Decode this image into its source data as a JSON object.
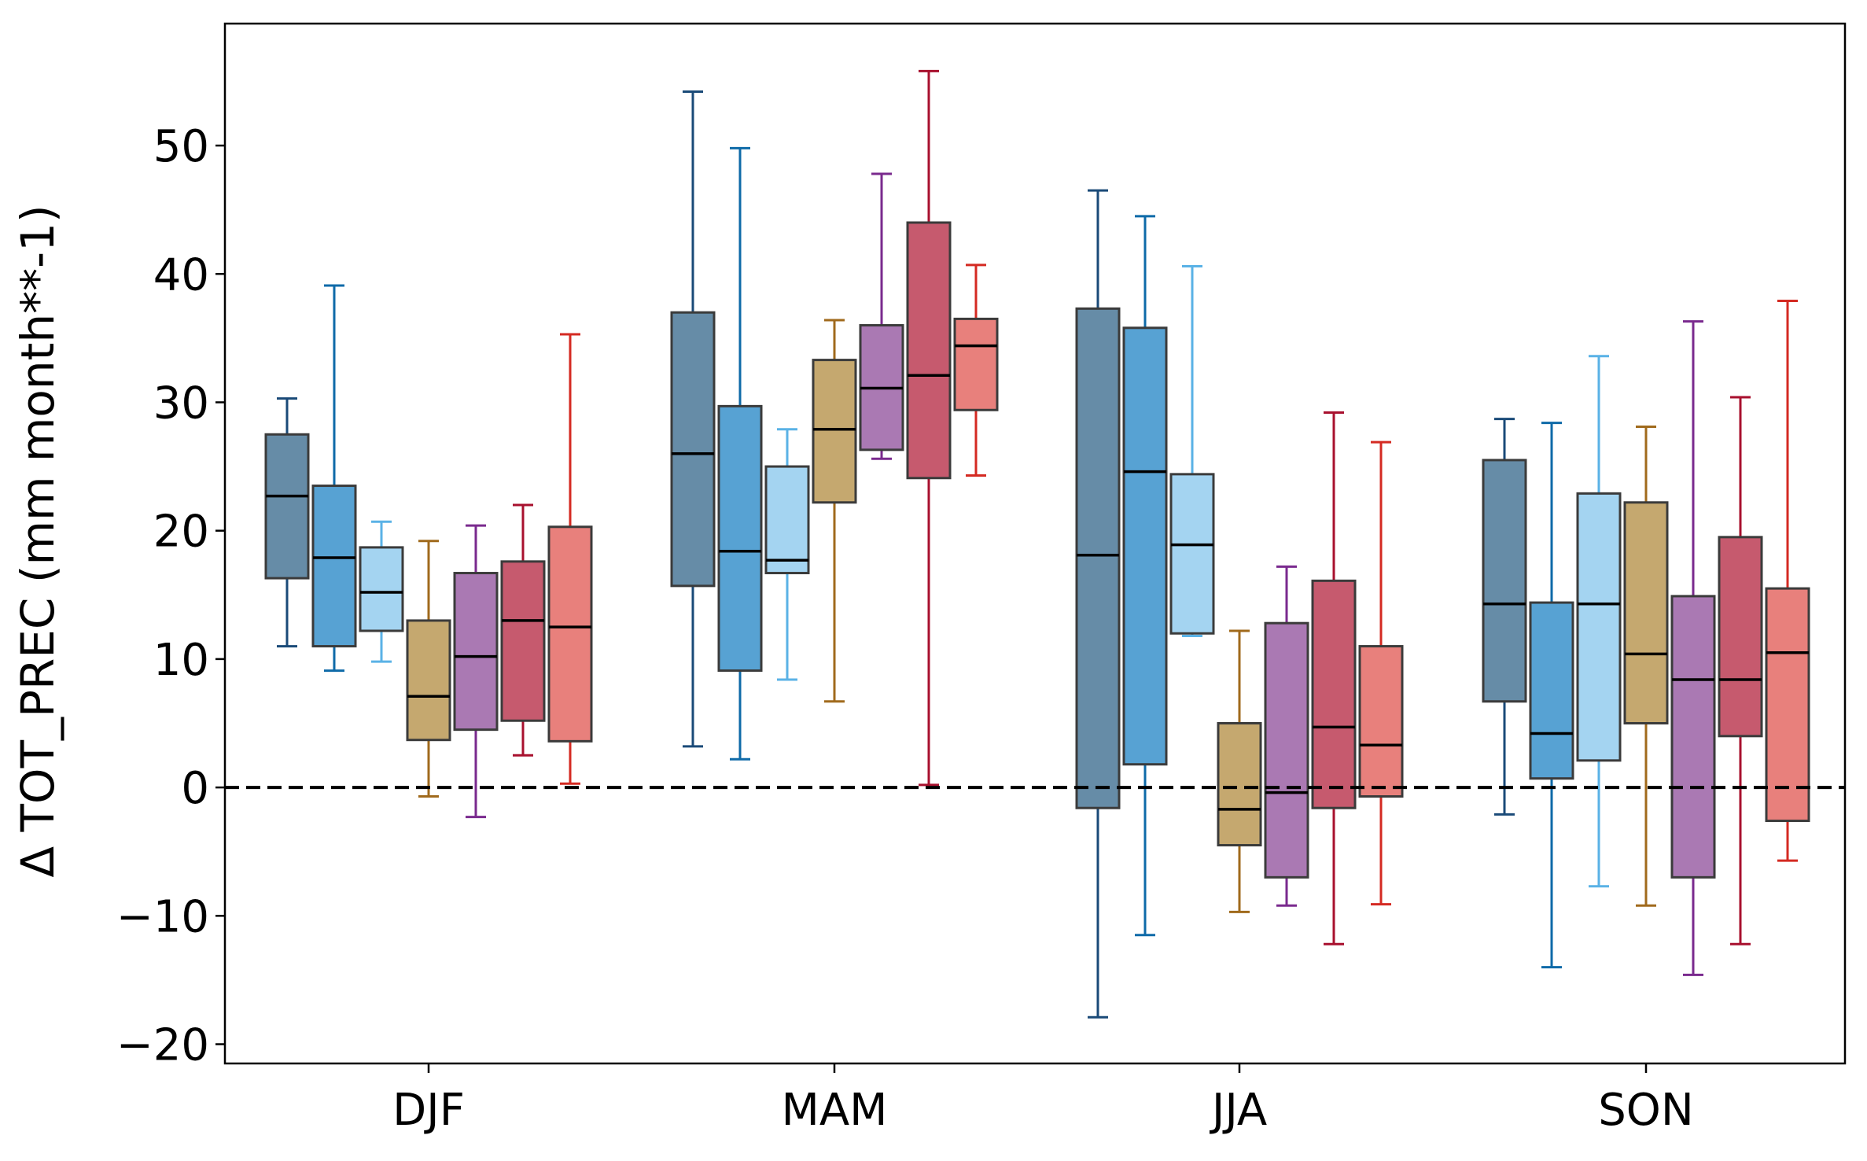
{
  "chart_data": {
    "type": "boxplot",
    "title": "",
    "xlabel": "",
    "ylabel": "Δ TOT_PREC (mm month**-1)",
    "ylim": [
      -21.5,
      59.5
    ],
    "yticks": [
      -20,
      -10,
      0,
      10,
      20,
      30,
      40,
      50
    ],
    "ytick_labels": [
      "−20",
      "−10",
      "0",
      "10",
      "20",
      "30",
      "40",
      "50"
    ],
    "reference_line": {
      "y": 0,
      "style": "dashed",
      "color": "#000000"
    },
    "categories": [
      "DJF",
      "MAM",
      "JJA",
      "SON"
    ],
    "series": [
      {
        "color": "#33658a",
        "whisker_color": "#1a4a78",
        "boxes": [
          {
            "whislo": 11.0,
            "q1": 16.3,
            "med": 22.7,
            "q3": 27.5,
            "whishi": 30.3
          },
          {
            "whislo": 3.2,
            "q1": 15.7,
            "med": 26.0,
            "q3": 37.0,
            "whishi": 54.2
          },
          {
            "whislo": -17.9,
            "q1": -1.6,
            "med": 18.1,
            "q3": 37.3,
            "whishi": 46.5
          },
          {
            "whislo": -2.1,
            "q1": 6.7,
            "med": 14.3,
            "q3": 25.5,
            "whishi": 28.7
          }
        ]
      },
      {
        "color": "#1f83c4",
        "whisker_color": "#0e6aa8",
        "boxes": [
          {
            "whislo": 9.1,
            "q1": 11.0,
            "med": 17.9,
            "q3": 23.5,
            "whishi": 39.1
          },
          {
            "whislo": 2.2,
            "q1": 9.1,
            "med": 18.4,
            "q3": 29.7,
            "whishi": 49.8
          },
          {
            "whislo": -11.5,
            "q1": 1.8,
            "med": 24.6,
            "q3": 35.8,
            "whishi": 44.5
          },
          {
            "whislo": -14.0,
            "q1": 0.7,
            "med": 4.2,
            "q3": 14.4,
            "whishi": 28.4
          }
        ]
      },
      {
        "color": "#86c5ec",
        "whisker_color": "#5ab2e6",
        "boxes": [
          {
            "whislo": 9.8,
            "q1": 12.2,
            "med": 15.2,
            "q3": 18.7,
            "whishi": 20.7
          },
          {
            "whislo": 8.4,
            "q1": 16.7,
            "med": 17.7,
            "q3": 25.0,
            "whishi": 27.9
          },
          {
            "whislo": 11.8,
            "q1": 12.0,
            "med": 18.9,
            "q3": 24.4,
            "whishi": 40.6
          },
          {
            "whislo": -7.7,
            "q1": 2.1,
            "med": 14.3,
            "q3": 22.9,
            "whishi": 33.6
          }
        ]
      },
      {
        "color": "#b28b3f",
        "whisker_color": "#a06a1c",
        "boxes": [
          {
            "whislo": -0.7,
            "q1": 3.7,
            "med": 7.1,
            "q3": 13.0,
            "whishi": 19.2
          },
          {
            "whislo": 6.7,
            "q1": 22.2,
            "med": 27.9,
            "q3": 33.3,
            "whishi": 36.4
          },
          {
            "whislo": -9.7,
            "q1": -4.5,
            "med": -1.7,
            "q3": 5.0,
            "whishi": 12.2
          },
          {
            "whislo": -9.2,
            "q1": 5.0,
            "med": 10.4,
            "q3": 22.2,
            "whishi": 28.1
          }
        ]
      },
      {
        "color": "#8e4c9a",
        "whisker_color": "#7a2a8e",
        "boxes": [
          {
            "whislo": -2.3,
            "q1": 4.5,
            "med": 10.2,
            "q3": 16.7,
            "whishi": 20.4
          },
          {
            "whislo": 25.6,
            "q1": 26.3,
            "med": 31.1,
            "q3": 36.0,
            "whishi": 47.8
          },
          {
            "whislo": -9.2,
            "q1": -7.0,
            "med": -0.4,
            "q3": 12.8,
            "whishi": 17.2
          },
          {
            "whislo": -14.6,
            "q1": -7.0,
            "med": 8.4,
            "q3": 14.9,
            "whishi": 36.3
          }
        ]
      },
      {
        "color": "#b3233e",
        "whisker_color": "#a8102e",
        "boxes": [
          {
            "whislo": 2.5,
            "q1": 5.2,
            "med": 13.0,
            "q3": 17.6,
            "whishi": 22.0
          },
          {
            "whislo": 0.2,
            "q1": 24.1,
            "med": 32.1,
            "q3": 44.0,
            "whishi": 55.8
          },
          {
            "whislo": -12.2,
            "q1": -1.6,
            "med": 4.7,
            "q3": 16.1,
            "whishi": 29.2
          },
          {
            "whislo": -12.2,
            "q1": 4.0,
            "med": 8.4,
            "q3": 19.5,
            "whishi": 30.4
          }
        ]
      },
      {
        "color": "#e05650",
        "whisker_color": "#d42a22",
        "boxes": [
          {
            "whislo": 0.3,
            "q1": 3.6,
            "med": 12.5,
            "q3": 20.3,
            "whishi": 35.3
          },
          {
            "whislo": 24.3,
            "q1": 29.4,
            "med": 34.4,
            "q3": 36.5,
            "whishi": 40.7
          },
          {
            "whislo": -9.1,
            "q1": -0.7,
            "med": 3.3,
            "q3": 11.0,
            "whishi": 26.9
          },
          {
            "whislo": -5.7,
            "q1": -2.6,
            "med": 10.5,
            "q3": 15.5,
            "whishi": 37.9
          }
        ]
      }
    ]
  }
}
